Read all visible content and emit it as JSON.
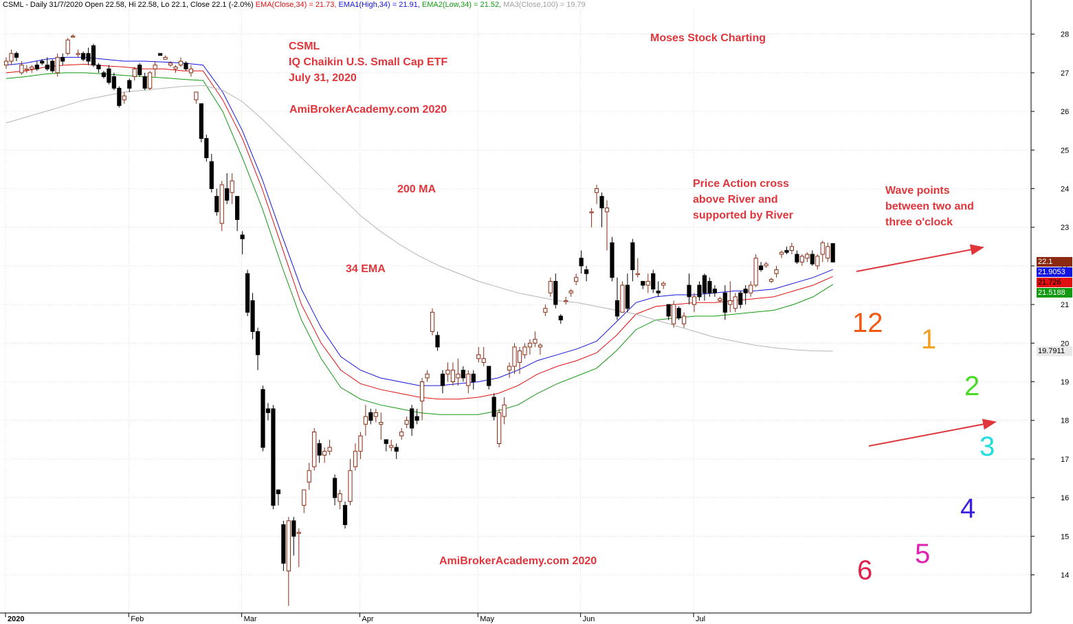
{
  "header": {
    "title": "CSML - Daily 31/7/2020 Open 22.58, Hi 22.58, Lo 22.1, Close 22.1 (-2.0%)",
    "ema": "EMA(Close,34) = 21.73,",
    "ema1": "EMA1(High,34) = 21.91,",
    "ema2": "EMA2(Low,34) = 21.52,",
    "ma3": "MA3(Close,100) = 19.79"
  },
  "colors": {
    "up": "#8b2a10",
    "down": "#000000",
    "ema_close": "#e01010",
    "ema_high": "#1414e0",
    "ema_low": "#119911",
    "ma": "#b4b4b4",
    "annotation": "#e0353b",
    "header_ema": "#e01010",
    "header_ema1": "#1414e0",
    "header_ema2": "#119911",
    "header_ma3": "#a0a0a0"
  },
  "annotations": {
    "ticker": "CSML",
    "fund": "IQ Chaikin U.S. Small Cap ETF",
    "date": "July 31, 2020",
    "site1": "AmiBrokerAcademy.com  2020",
    "brand": "Moses Stock Charting",
    "ma_label": "200 MA",
    "ema_label": "34 EMA",
    "price_action": [
      "Price Action cross",
      "above River and",
      "supported by River"
    ],
    "wave_points": [
      "Wave points",
      "between two and",
      "three o'clock"
    ],
    "site2": "AmiBrokerAcademy.com  2020"
  },
  "clock": [
    {
      "label": "12",
      "color": "#f05a10"
    },
    {
      "label": "1",
      "color": "#f2a020"
    },
    {
      "label": "2",
      "color": "#44dd22"
    },
    {
      "label": "3",
      "color": "#22dddd"
    },
    {
      "label": "4",
      "color": "#3a22dd"
    },
    {
      "label": "5",
      "color": "#e020b0"
    },
    {
      "label": "6",
      "color": "#e0204a"
    }
  ],
  "price_labels": {
    "last": {
      "text": "22.1",
      "value": 22.1,
      "bg": "#8b2a10",
      "fg": "#ffffff"
    },
    "ema1": {
      "text": "21.9053",
      "value": 21.9053,
      "bg": "#1414e0",
      "fg": "#ffffff"
    },
    "ema": {
      "text": "21.726",
      "value": 21.726,
      "bg": "#e01010",
      "fg": "#000000"
    },
    "ema2": {
      "text": "21.5188",
      "value": 21.5188,
      "bg": "#119911",
      "fg": "#ffffff"
    },
    "ma": {
      "text": "19.7911",
      "value": 19.7911,
      "bg": "#e8e8e8",
      "fg": "#000000"
    }
  },
  "chart_data": {
    "type": "candlestick",
    "ticker": "CSML",
    "ylim": [
      13,
      28.8
    ],
    "y_ticks": [
      14,
      15,
      16,
      17,
      18,
      19,
      20,
      21,
      22,
      23,
      24,
      25,
      26,
      27,
      28
    ],
    "x_labels": [
      "2020",
      "Feb",
      "Mar",
      "Apr",
      "May",
      "Jun",
      "Jul"
    ],
    "month_start_index": [
      0,
      24,
      46,
      69,
      92,
      112,
      134
    ],
    "candles": [
      [
        27.2,
        27.4,
        27.1,
        27.3
      ],
      [
        27.3,
        27.6,
        27.2,
        27.5
      ],
      [
        27.5,
        27.55,
        27.3,
        27.4
      ],
      [
        27.0,
        27.3,
        26.95,
        27.2
      ],
      [
        27.1,
        27.2,
        27.0,
        27.1
      ],
      [
        27.1,
        27.2,
        27.0,
        27.15
      ],
      [
        27.2,
        27.3,
        27.05,
        27.1
      ],
      [
        27.3,
        27.35,
        27.2,
        27.25
      ],
      [
        27.2,
        27.4,
        27.05,
        27.1
      ],
      [
        27.3,
        27.35,
        27.0,
        27.05
      ],
      [
        27.0,
        27.5,
        26.9,
        27.4
      ],
      [
        27.4,
        27.5,
        27.2,
        27.3
      ],
      [
        27.5,
        27.9,
        27.45,
        27.85
      ],
      [
        27.95,
        28.0,
        27.9,
        27.95
      ],
      [
        27.5,
        27.6,
        27.4,
        27.5
      ],
      [
        27.5,
        27.55,
        27.3,
        27.35
      ],
      [
        27.5,
        27.65,
        27.2,
        27.3
      ],
      [
        27.7,
        27.75,
        27.15,
        27.2
      ],
      [
        27.2,
        27.25,
        27.0,
        27.1
      ],
      [
        27.0,
        27.05,
        26.85,
        26.9
      ],
      [
        27.1,
        27.2,
        26.7,
        26.75
      ],
      [
        26.9,
        27.0,
        26.55,
        26.6
      ],
      [
        26.6,
        26.65,
        26.1,
        26.15
      ],
      [
        26.3,
        26.5,
        26.2,
        26.4
      ],
      [
        26.8,
        26.85,
        26.5,
        26.6
      ],
      [
        26.9,
        27.15,
        26.8,
        27.1
      ],
      [
        27.2,
        27.25,
        26.9,
        26.95
      ],
      [
        26.9,
        27.0,
        26.55,
        26.6
      ],
      [
        26.6,
        27.05,
        26.55,
        27.0
      ],
      [
        27.1,
        27.3,
        26.9,
        27.2
      ],
      [
        27.5,
        27.5,
        27.45,
        27.45
      ],
      [
        27.35,
        27.45,
        27.35,
        27.4
      ],
      [
        27.2,
        27.3,
        27.15,
        27.25
      ],
      [
        27.1,
        27.2,
        27.0,
        27.15
      ],
      [
        27.2,
        27.4,
        27.15,
        27.3
      ],
      [
        27.25,
        27.3,
        27.05,
        27.1
      ],
      [
        27.0,
        27.2,
        26.9,
        27.1
      ],
      [
        26.3,
        26.5,
        26.2,
        26.5
      ],
      [
        26.2,
        26.2,
        25.2,
        25.3
      ],
      [
        25.3,
        25.4,
        24.7,
        24.8
      ],
      [
        24.7,
        24.9,
        23.9,
        24.0
      ],
      [
        23.8,
        24.0,
        23.3,
        23.4
      ],
      [
        23.1,
        24.2,
        22.9,
        24.1
      ],
      [
        24.0,
        24.4,
        23.6,
        23.7
      ],
      [
        23.9,
        24.4,
        23.6,
        24.2
      ],
      [
        23.8,
        23.8,
        22.9,
        23.2
      ],
      [
        22.8,
        22.9,
        22.3,
        22.7
      ],
      [
        21.8,
        21.9,
        20.7,
        20.8
      ],
      [
        21.1,
        21.3,
        20.1,
        20.3
      ],
      [
        20.3,
        20.4,
        19.3,
        19.7
      ],
      [
        18.8,
        18.9,
        17.2,
        17.3
      ],
      [
        18.3,
        18.45,
        18.0,
        18.2
      ],
      [
        18.3,
        18.4,
        15.7,
        15.8
      ],
      [
        16.2,
        16.2,
        15.8,
        16.1
      ],
      [
        15.3,
        15.4,
        14.1,
        14.3
      ],
      [
        14.1,
        15.5,
        13.2,
        15.4
      ],
      [
        15.4,
        15.5,
        14.5,
        15.0
      ],
      [
        15.1,
        15.2,
        14.2,
        15.1
      ],
      [
        15.8,
        16.2,
        15.6,
        16.2
      ],
      [
        16.4,
        16.9,
        16.2,
        16.7
      ],
      [
        16.8,
        17.8,
        16.7,
        17.7
      ],
      [
        17.4,
        17.5,
        16.9,
        17.1
      ],
      [
        17.1,
        17.3,
        16.9,
        17.2
      ],
      [
        17.2,
        17.5,
        17.1,
        17.3
      ],
      [
        16.5,
        16.6,
        15.8,
        16.0
      ],
      [
        15.9,
        16.2,
        15.7,
        16.1
      ],
      [
        15.8,
        15.9,
        15.2,
        15.3
      ],
      [
        15.9,
        17.0,
        15.8,
        16.7
      ],
      [
        16.8,
        17.4,
        16.7,
        17.2
      ],
      [
        17.2,
        17.7,
        17.0,
        17.6
      ],
      [
        17.9,
        18.4,
        17.6,
        18.1
      ],
      [
        18.2,
        18.3,
        17.9,
        18.0
      ],
      [
        18.1,
        18.3,
        17.95,
        18.2
      ],
      [
        17.9,
        18.2,
        17.5,
        17.95
      ],
      [
        17.5,
        17.5,
        17.2,
        17.4
      ],
      [
        17.3,
        17.5,
        17.2,
        17.35
      ],
      [
        17.3,
        17.4,
        17.0,
        17.2
      ],
      [
        17.6,
        17.8,
        17.5,
        17.7
      ],
      [
        17.9,
        18.1,
        17.8,
        18.0
      ],
      [
        18.3,
        18.4,
        17.6,
        17.8
      ],
      [
        18.1,
        18.3,
        17.9,
        18.0
      ],
      [
        18.5,
        19.1,
        18.0,
        19.0
      ],
      [
        19.1,
        19.3,
        19.0,
        19.2
      ],
      [
        20.3,
        20.9,
        20.2,
        20.8
      ],
      [
        20.2,
        20.3,
        19.8,
        19.9
      ],
      [
        19.2,
        19.3,
        18.7,
        18.9
      ],
      [
        19.2,
        19.5,
        19.0,
        19.3
      ],
      [
        19.0,
        19.5,
        18.9,
        19.3
      ],
      [
        19.1,
        19.6,
        18.9,
        19.2
      ],
      [
        19.3,
        19.4,
        19.0,
        19.1
      ],
      [
        18.9,
        19.3,
        18.7,
        19.2
      ],
      [
        19.2,
        19.3,
        18.8,
        19.0
      ],
      [
        19.6,
        19.9,
        19.5,
        19.7
      ],
      [
        19.5,
        19.9,
        19.4,
        19.6
      ],
      [
        19.4,
        19.4,
        18.8,
        18.9
      ],
      [
        18.6,
        18.7,
        18.0,
        18.1
      ],
      [
        17.4,
        18.3,
        17.3,
        18.2
      ],
      [
        18.1,
        18.6,
        17.9,
        18.4
      ],
      [
        19.3,
        19.5,
        19.1,
        19.4
      ],
      [
        19.4,
        20.0,
        19.2,
        19.9
      ],
      [
        19.5,
        19.9,
        19.2,
        19.8
      ],
      [
        19.7,
        20.0,
        19.6,
        19.9
      ],
      [
        19.9,
        20.1,
        19.7,
        20.0
      ],
      [
        20.0,
        20.3,
        19.9,
        20.1
      ],
      [
        19.9,
        20.0,
        19.7,
        19.95
      ],
      [
        20.8,
        21.0,
        20.7,
        20.9
      ],
      [
        21.3,
        21.7,
        21.2,
        21.6
      ],
      [
        21.6,
        21.8,
        20.9,
        21.0
      ],
      [
        20.7,
        20.75,
        20.5,
        20.6
      ],
      [
        21.1,
        21.2,
        21.0,
        21.1
      ],
      [
        21.3,
        21.4,
        21.2,
        21.35
      ],
      [
        21.6,
        21.8,
        21.5,
        21.7
      ],
      [
        22.2,
        22.4,
        21.8,
        22.0
      ],
      [
        21.9,
        22.0,
        21.6,
        21.8
      ],
      [
        23.4,
        23.5,
        23.0,
        23.4
      ],
      [
        23.9,
        24.1,
        23.6,
        24.0
      ],
      [
        23.8,
        23.9,
        23.0,
        23.5
      ],
      [
        23.4,
        23.7,
        22.4,
        23.5
      ],
      [
        22.6,
        22.75,
        21.6,
        21.7
      ],
      [
        21.1,
        21.7,
        20.6,
        20.7
      ],
      [
        20.8,
        21.6,
        20.8,
        21.5
      ],
      [
        21.5,
        21.8,
        20.8,
        20.9
      ],
      [
        22.6,
        22.7,
        21.6,
        21.9
      ],
      [
        21.8,
        22.2,
        21.7,
        21.8
      ],
      [
        21.6,
        21.6,
        21.4,
        21.5
      ],
      [
        21.5,
        21.8,
        21.3,
        21.6
      ],
      [
        21.8,
        21.9,
        21.3,
        21.4
      ],
      [
        21.35,
        21.6,
        21.2,
        21.3
      ],
      [
        21.5,
        21.6,
        21.4,
        21.55
      ],
      [
        21.0,
        21.0,
        20.6,
        20.7
      ],
      [
        20.5,
        21.1,
        20.4,
        21.0
      ],
      [
        20.9,
        20.95,
        20.6,
        20.65
      ],
      [
        20.5,
        20.8,
        20.4,
        20.7
      ],
      [
        21.5,
        21.8,
        21.0,
        21.2
      ],
      [
        21.0,
        21.3,
        20.8,
        21.2
      ],
      [
        21.5,
        21.6,
        21.1,
        21.2
      ],
      [
        21.75,
        21.8,
        21.1,
        21.3
      ],
      [
        21.6,
        21.7,
        21.2,
        21.3
      ],
      [
        21.4,
        21.5,
        21.2,
        21.3
      ],
      [
        21.1,
        21.2,
        21.05,
        21.15
      ],
      [
        21.3,
        21.5,
        20.6,
        20.8
      ],
      [
        21.0,
        21.6,
        20.8,
        21.1
      ],
      [
        20.9,
        21.3,
        20.8,
        21.2
      ],
      [
        21.3,
        21.35,
        20.9,
        21.0
      ],
      [
        21.4,
        21.5,
        21.0,
        21.3
      ],
      [
        21.3,
        21.6,
        21.2,
        21.5
      ],
      [
        21.5,
        22.3,
        21.45,
        22.2
      ],
      [
        22.0,
        22.1,
        21.85,
        21.9
      ],
      [
        22.0,
        22.1,
        21.95,
        22.05
      ],
      [
        21.6,
        21.7,
        21.55,
        21.65
      ],
      [
        21.8,
        22.0,
        21.7,
        21.9
      ],
      [
        22.3,
        22.4,
        22.2,
        22.35
      ],
      [
        22.4,
        22.5,
        22.3,
        22.35
      ],
      [
        22.4,
        22.6,
        22.3,
        22.5
      ],
      [
        22.3,
        22.4,
        22.05,
        22.1
      ],
      [
        22.1,
        22.3,
        22.0,
        22.25
      ],
      [
        22.2,
        22.35,
        22.1,
        22.3
      ],
      [
        22.3,
        22.4,
        22.0,
        22.05
      ],
      [
        22.0,
        22.3,
        21.9,
        22.25
      ],
      [
        22.3,
        22.65,
        22.1,
        22.6
      ],
      [
        22.2,
        22.6,
        22.1,
        22.5
      ],
      [
        22.58,
        22.58,
        22.1,
        22.1
      ]
    ],
    "series": [
      {
        "name": "EMA(Close,34)",
        "key": "ema_close",
        "values": [
          27.0,
          27.05,
          27.15,
          27.2,
          27.22,
          27.18,
          27.15,
          27.1,
          27.1,
          27.05,
          27.05,
          26.3,
          25.3,
          24.0,
          22.5,
          21.0,
          20.0,
          19.3,
          18.95,
          18.8,
          18.7,
          18.6,
          18.55,
          18.55,
          18.6,
          18.7,
          18.9,
          19.2,
          19.4,
          19.55,
          19.75,
          20.2,
          20.75,
          20.95,
          21.0,
          21.05,
          21.05,
          21.1,
          21.15,
          21.2,
          21.35,
          21.5,
          21.726
        ]
      },
      {
        "name": "EMA1(High,34)",
        "key": "ema_high",
        "values": [
          27.2,
          27.25,
          27.35,
          27.4,
          27.4,
          27.35,
          27.3,
          27.3,
          27.28,
          27.25,
          27.2,
          26.5,
          25.5,
          24.25,
          22.8,
          21.4,
          20.4,
          19.65,
          19.3,
          19.1,
          19.0,
          18.9,
          18.9,
          18.95,
          19.0,
          19.1,
          19.3,
          19.55,
          19.7,
          19.85,
          20.05,
          20.55,
          21.05,
          21.2,
          21.25,
          21.25,
          21.3,
          21.35,
          21.35,
          21.4,
          21.55,
          21.7,
          21.9053
        ]
      },
      {
        "name": "EMA2(Low,34)",
        "key": "ema_low",
        "values": [
          26.85,
          26.9,
          26.97,
          27.0,
          27.0,
          26.97,
          26.93,
          26.9,
          26.87,
          26.83,
          26.8,
          26.0,
          24.8,
          23.5,
          22.0,
          20.6,
          19.6,
          18.85,
          18.55,
          18.4,
          18.3,
          18.2,
          18.15,
          18.15,
          18.15,
          18.25,
          18.4,
          18.7,
          18.95,
          19.15,
          19.35,
          19.8,
          20.35,
          20.6,
          20.65,
          20.7,
          20.7,
          20.75,
          20.8,
          20.85,
          21.0,
          21.2,
          21.5188
        ]
      },
      {
        "name": "MA3(Close,100)",
        "key": "ma",
        "values": [
          25.7,
          25.85,
          26.0,
          26.15,
          26.3,
          26.4,
          26.5,
          26.55,
          26.6,
          26.65,
          26.67,
          26.55,
          26.25,
          25.8,
          25.3,
          24.8,
          24.3,
          23.8,
          23.3,
          22.9,
          22.55,
          22.25,
          22.0,
          21.8,
          21.6,
          21.45,
          21.3,
          21.2,
          21.1,
          21.05,
          20.95,
          20.85,
          20.75,
          20.6,
          20.45,
          20.3,
          20.15,
          20.05,
          19.95,
          19.88,
          19.83,
          19.8,
          19.7911
        ]
      }
    ]
  }
}
